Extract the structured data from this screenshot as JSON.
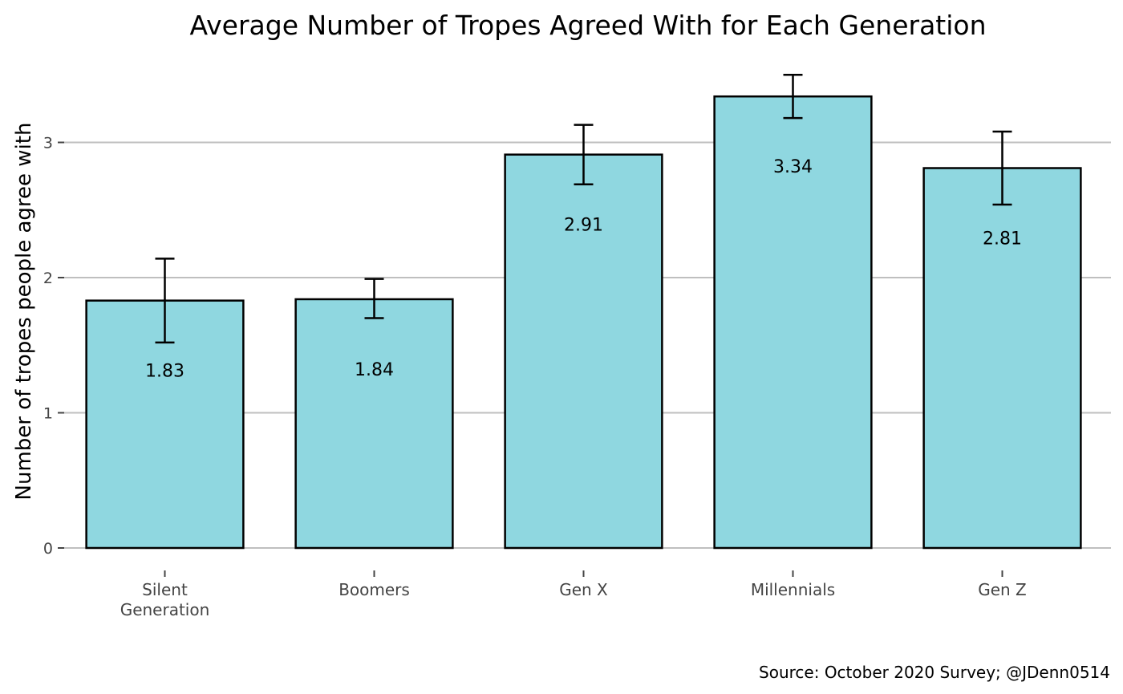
{
  "chart_data": {
    "type": "bar",
    "title": "Average Number of Tropes Agreed With for Each Generation",
    "xlabel": "",
    "ylabel": "Number of tropes people agree with",
    "caption": "Source: October 2020 Survey; @JDenn0514",
    "categories": [
      [
        "Silent",
        "Generation"
      ],
      [
        "Boomers"
      ],
      [
        "Gen X"
      ],
      [
        "Millennials"
      ],
      [
        "Gen Z"
      ]
    ],
    "values": [
      1.83,
      1.84,
      2.91,
      3.34,
      2.81
    ],
    "value_labels": [
      "1.83",
      "1.84",
      "2.91",
      "3.34",
      "2.81"
    ],
    "error_low": [
      1.52,
      1.7,
      2.69,
      3.18,
      2.54
    ],
    "error_high": [
      2.14,
      1.99,
      3.13,
      3.5,
      3.08
    ],
    "yticks": [
      0,
      1,
      2,
      3
    ],
    "ylim": [
      0,
      3.55
    ],
    "grid": "horizontal",
    "legend": "none",
    "colors": {
      "bar_fill": "#8fd7e0",
      "bar_stroke": "#000000",
      "grid": "#bfbfbf",
      "error_bar": "#000000"
    }
  }
}
